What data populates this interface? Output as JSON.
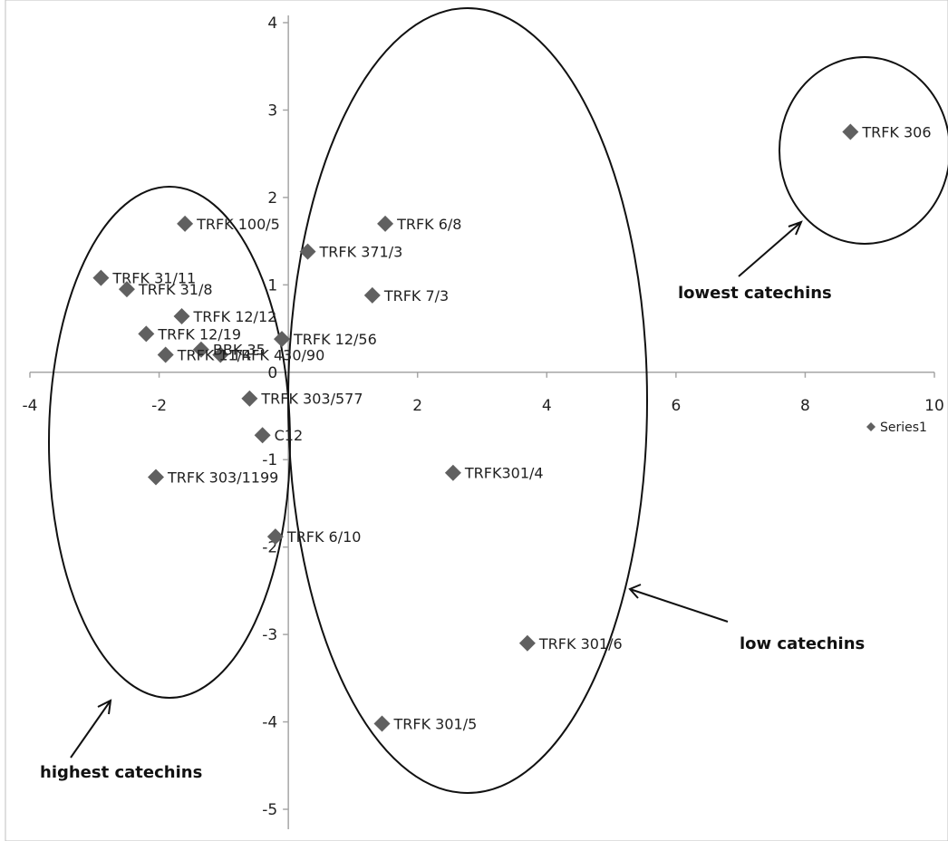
{
  "chart_data": {
    "type": "scatter",
    "xlim": [
      -4,
      10
    ],
    "ylim": [
      -5,
      4
    ],
    "x_ticks": [
      -4,
      -2,
      0,
      2,
      4,
      6,
      8,
      10
    ],
    "y_ticks": [
      -5,
      -4,
      -3,
      -2,
      -1,
      0,
      1,
      2,
      3,
      4
    ],
    "grid": false,
    "legend_position": "right",
    "colors": {
      "marker": "#606060",
      "axis": "#a6a6a6",
      "ink": "#111111"
    },
    "series": [
      {
        "name": "Series1",
        "points": [
          {
            "label": "TRFK 306",
            "x": 8.7,
            "y": 2.75
          },
          {
            "label": "TRFK 100/5",
            "x": -1.6,
            "y": 1.7
          },
          {
            "label": "TRFK 6/8",
            "x": 1.5,
            "y": 1.7
          },
          {
            "label": "TRFK 371/3",
            "x": 0.3,
            "y": 1.38
          },
          {
            "label": "TRFK 31/11",
            "x": -2.9,
            "y": 1.08
          },
          {
            "label": "TRFK 31/8",
            "x": -2.5,
            "y": 0.95
          },
          {
            "label": "TRFK 7/3",
            "x": 1.3,
            "y": 0.88
          },
          {
            "label": "TRFK 12/12",
            "x": -1.65,
            "y": 0.64
          },
          {
            "label": "TRFK 12/19",
            "x": -2.2,
            "y": 0.44
          },
          {
            "label": "TRFK 12/56",
            "x": -0.1,
            "y": 0.38
          },
          {
            "label": "BBK 35",
            "x": -1.35,
            "y": 0.26
          },
          {
            "label": "TRFK 11/4",
            "x": -1.9,
            "y": 0.2
          },
          {
            "label": "TRFK 430/90",
            "x": -1.05,
            "y": 0.2
          },
          {
            "label": "TRFK 303/577",
            "x": -0.6,
            "y": -0.3
          },
          {
            "label": "C12",
            "x": -0.4,
            "y": -0.72
          },
          {
            "label": "TRFK 303/1199",
            "x": -2.05,
            "y": -1.2
          },
          {
            "label": "TRFK301/4",
            "x": 2.55,
            "y": -1.15
          },
          {
            "label": "TRFK 6/10",
            "x": -0.2,
            "y": -1.88
          },
          {
            "label": "TRFK 301/6",
            "x": 3.7,
            "y": -3.1
          },
          {
            "label": "TRFK 301/5",
            "x": 1.45,
            "y": -4.02
          }
        ]
      }
    ],
    "annotations": {
      "highest": "highest catechins",
      "low": "low catechins",
      "lowest": "lowest catechins"
    }
  }
}
